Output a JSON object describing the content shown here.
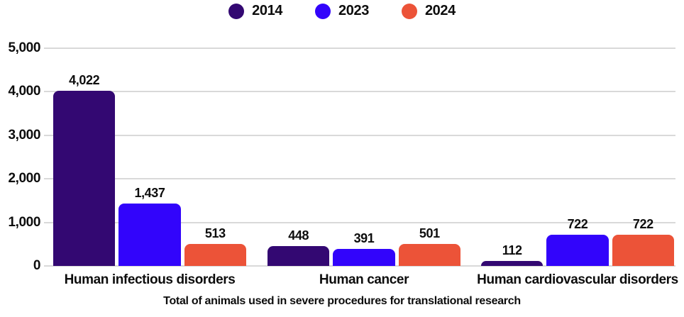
{
  "chart_data": {
    "type": "bar",
    "title": "Total of animals used in severe procedures for translational research",
    "categories": [
      "Human infectious disorders",
      "Human cancer",
      "Human cardiovascular disorders"
    ],
    "series": [
      {
        "name": "2014",
        "color": "#330872",
        "values": [
          4022,
          448,
          112
        ]
      },
      {
        "name": "2023",
        "color": "#3204FB",
        "values": [
          1437,
          391,
          722
        ]
      },
      {
        "name": "2024",
        "color": "#EC5338",
        "values": [
          513,
          501,
          722
        ]
      }
    ],
    "value_labels": [
      [
        "4,022",
        "448",
        "112"
      ],
      [
        "1,437",
        "391",
        "722"
      ],
      [
        "513",
        "501",
        "722"
      ]
    ],
    "ylim": [
      0,
      5000
    ],
    "yticks": [
      {
        "label": "0",
        "value": 0
      },
      {
        "label": "1,000",
        "value": 1000
      },
      {
        "label": "2,000",
        "value": 2000
      },
      {
        "label": "3,000",
        "value": 3000
      },
      {
        "label": "4,000",
        "value": 4000
      },
      {
        "label": "5,000",
        "value": 5000
      }
    ],
    "grid": "horizontal",
    "legend_position": "top",
    "colors": {
      "grid": "#D9D9D9",
      "text": "#0D0D0D",
      "background": "#FFFFFF"
    }
  }
}
